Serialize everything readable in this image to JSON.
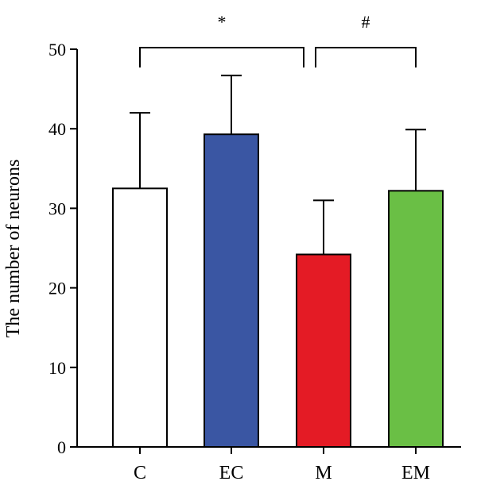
{
  "chart_data": {
    "type": "bar",
    "categories": [
      "C",
      "EC",
      "M",
      "EM"
    ],
    "values": [
      32.5,
      39.3,
      24.2,
      32.2
    ],
    "error_upper": [
      42.0,
      46.7,
      31.0,
      39.9
    ],
    "colors": [
      "#ffffff",
      "#3a56a3",
      "#e41b25",
      "#6abf45"
    ],
    "ylabel": "The number of neurons",
    "ylim": [
      0,
      50
    ],
    "yticks": [
      0,
      10,
      20,
      30,
      40,
      50
    ],
    "ytick_labels": [
      "0",
      "10",
      "20",
      "30",
      "40",
      "50"
    ],
    "grid": false,
    "annotations": [
      {
        "text": "*",
        "from": "C",
        "to": "M"
      },
      {
        "text": "#",
        "from": "M",
        "to": "EM"
      }
    ]
  }
}
